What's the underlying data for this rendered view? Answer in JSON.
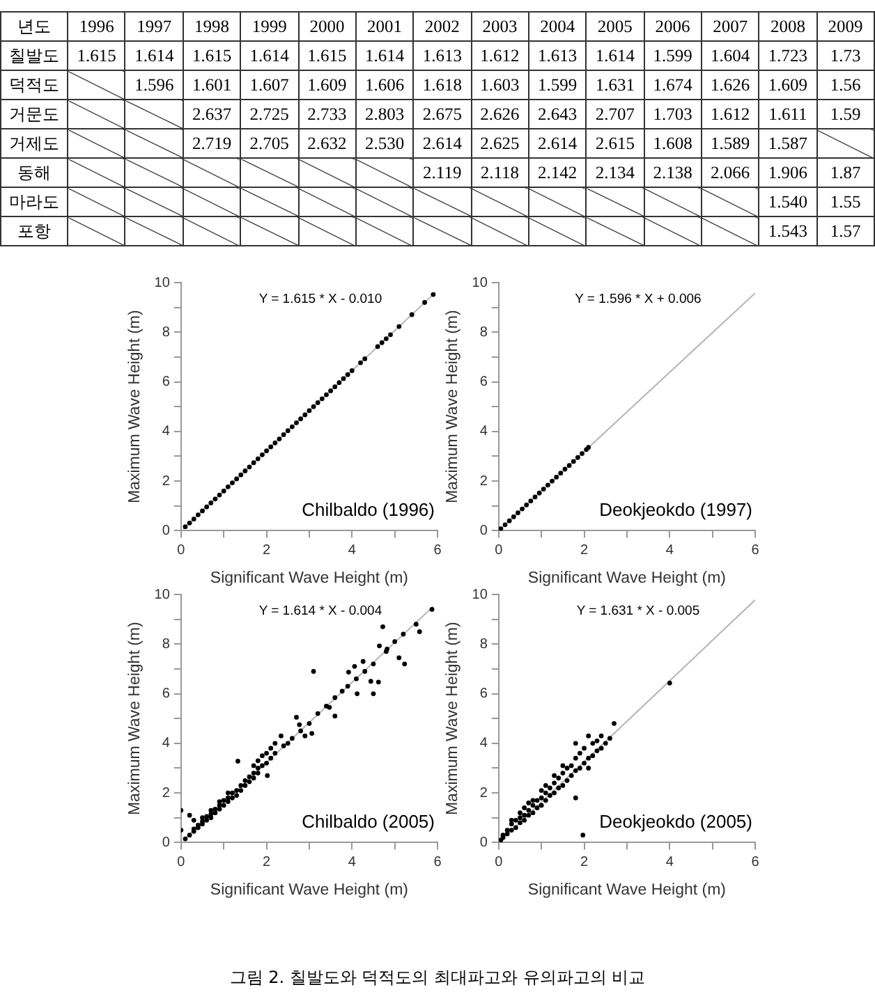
{
  "chart_data": [
    {
      "type": "heatmap",
      "xlabel": "년도",
      "categories": [
        "1996",
        "1997",
        "1998",
        "1999",
        "2000",
        "2001",
        "2002",
        "2003",
        "2004",
        "2005",
        "2006",
        "2007",
        "2008",
        "2009"
      ],
      "y_categories": [
        "칠발도",
        "덕적도",
        "거문도",
        "거제도",
        "동해",
        "마라도",
        "포항"
      ],
      "cells": [
        [
          1.615,
          1.614,
          1.615,
          1.614,
          1.615,
          1.614,
          1.613,
          1.612,
          1.613,
          1.614,
          1.599,
          1.604,
          1.723,
          1.73
        ],
        [
          null,
          1.596,
          1.601,
          1.607,
          1.609,
          1.606,
          1.618,
          1.603,
          1.599,
          1.631,
          1.674,
          1.626,
          1.609,
          1.56
        ],
        [
          null,
          null,
          2.637,
          2.725,
          2.733,
          2.803,
          2.675,
          2.626,
          2.643,
          2.707,
          1.703,
          1.612,
          1.611,
          1.59
        ],
        [
          null,
          null,
          2.719,
          2.705,
          2.632,
          2.53,
          2.614,
          2.625,
          2.614,
          2.615,
          1.608,
          1.589,
          1.587,
          null
        ],
        [
          null,
          null,
          null,
          null,
          null,
          null,
          2.119,
          2.118,
          2.142,
          2.134,
          2.138,
          2.066,
          1.906,
          1.87
        ],
        [
          null,
          null,
          null,
          null,
          null,
          null,
          null,
          null,
          null,
          null,
          null,
          null,
          1.54,
          1.55
        ],
        [
          null,
          null,
          null,
          null,
          null,
          null,
          null,
          null,
          null,
          null,
          null,
          null,
          1.543,
          1.57
        ]
      ],
      "cell_labels": [
        [
          "1.615",
          "1.614",
          "1.615",
          "1.614",
          "1.615",
          "1.614",
          "1.613",
          "1.612",
          "1.613",
          "1.614",
          "1.599",
          "1.604",
          "1.723",
          "1.73"
        ],
        [
          null,
          "1.596",
          "1.601",
          "1.607",
          "1.609",
          "1.606",
          "1.618",
          "1.603",
          "1.599",
          "1.631",
          "1.674",
          "1.626",
          "1.609",
          "1.56"
        ],
        [
          null,
          null,
          "2.637",
          "2.725",
          "2.733",
          "2.803",
          "2.675",
          "2.626",
          "2.643",
          "2.707",
          "1.703",
          "1.612",
          "1.611",
          "1.59"
        ],
        [
          null,
          null,
          "2.719",
          "2.705",
          "2.632",
          "2.530",
          "2.614",
          "2.625",
          "2.614",
          "2.615",
          "1.608",
          "1.589",
          "1.587",
          null
        ],
        [
          null,
          null,
          null,
          null,
          null,
          null,
          "2.119",
          "2.118",
          "2.142",
          "2.134",
          "2.138",
          "2.066",
          "1.906",
          "1.87"
        ],
        [
          null,
          null,
          null,
          null,
          null,
          null,
          null,
          null,
          null,
          null,
          null,
          null,
          "1.540",
          "1.55"
        ],
        [
          null,
          null,
          null,
          null,
          null,
          null,
          null,
          null,
          null,
          null,
          null,
          null,
          "1.543",
          "1.57"
        ]
      ]
    },
    {
      "type": "scatter",
      "xlabel": "Significant Wave Height (m)",
      "ylabel": "Maximum Wave Height (m)",
      "xlim": [
        0,
        6
      ],
      "ylim": [
        0,
        10
      ],
      "xticks": [
        0,
        {
          "value": 1,
          "label": null
        },
        2,
        {
          "value": 3,
          "label": null
        },
        4,
        {
          "value": 5,
          "label": null
        },
        6
      ],
      "yticks": [
        0,
        {
          "value": 1,
          "label": null
        },
        2,
        {
          "value": 3,
          "label": null
        },
        4,
        {
          "value": 5,
          "label": null
        },
        6,
        {
          "value": 7,
          "label": null
        },
        8,
        {
          "value": 9,
          "label": null
        },
        10
      ],
      "grid": false,
      "marker": "circle",
      "annotations": [
        "Y = 1.615 * X - 0.010",
        "Chilbaldo (1996)"
      ],
      "series": [
        {
          "type": "line",
          "marker": "none",
          "color": "#b4b4b4",
          "x": [
            0.05,
            5.9
          ],
          "values": [
            0.07,
            9.52
          ]
        },
        {
          "color": "#000000",
          "x": [
            0.1,
            0.2,
            0.3,
            0.4,
            0.5,
            0.6,
            0.7,
            0.8,
            0.9,
            1.0,
            1.1,
            1.2,
            1.3,
            1.4,
            1.5,
            1.6,
            1.7,
            1.8,
            1.9,
            2.0,
            2.1,
            2.2,
            2.3,
            2.4,
            2.5,
            2.6,
            2.7,
            2.8,
            2.9,
            3.0,
            3.1,
            3.2,
            3.3,
            3.4,
            3.5,
            3.6,
            3.7,
            3.8,
            3.9,
            4.0,
            4.2,
            4.3,
            4.6,
            4.7,
            4.8,
            4.9,
            5.1,
            5.4,
            5.7,
            5.9
          ],
          "values": [
            0.16,
            0.31,
            0.47,
            0.64,
            0.8,
            0.96,
            1.12,
            1.28,
            1.44,
            1.6,
            1.77,
            1.93,
            2.09,
            2.25,
            2.41,
            2.57,
            2.74,
            2.9,
            3.06,
            3.22,
            3.38,
            3.54,
            3.7,
            3.87,
            4.03,
            4.19,
            4.35,
            4.51,
            4.67,
            4.84,
            5.0,
            5.16,
            5.32,
            5.48,
            5.64,
            5.8,
            5.97,
            6.13,
            6.29,
            6.45,
            6.77,
            6.93,
            7.42,
            7.58,
            7.74,
            7.9,
            8.23,
            8.71,
            9.2,
            9.52
          ]
        }
      ]
    },
    {
      "type": "scatter",
      "xlabel": "Significant Wave Height (m)",
      "ylabel": "Maximum Wave Height (m)",
      "xlim": [
        0,
        6
      ],
      "ylim": [
        0,
        10
      ],
      "xticks": [
        0,
        {
          "value": 1,
          "label": null
        },
        2,
        {
          "value": 3,
          "label": null
        },
        4,
        {
          "value": 5,
          "label": null
        },
        6
      ],
      "yticks": [
        0,
        {
          "value": 1,
          "label": null
        },
        2,
        {
          "value": 3,
          "label": null
        },
        4,
        {
          "value": 5,
          "label": null
        },
        6,
        {
          "value": 7,
          "label": null
        },
        8,
        {
          "value": 9,
          "label": null
        },
        10
      ],
      "grid": false,
      "marker": "circle",
      "annotations": [
        "Y = 1.596 * X + 0.006",
        "Deokjeokdo (1997)"
      ],
      "series": [
        {
          "type": "line",
          "marker": "none",
          "color": "#b4b4b4",
          "x": [
            0,
            6
          ],
          "values": [
            0,
            9.58
          ]
        },
        {
          "color": "#000000",
          "x": [
            0.05,
            0.15,
            0.25,
            0.35,
            0.45,
            0.55,
            0.65,
            0.75,
            0.85,
            0.95,
            1.05,
            1.15,
            1.25,
            1.35,
            1.45,
            1.55,
            1.65,
            1.75,
            1.85,
            1.95,
            2.05,
            2.1
          ],
          "values": [
            0.08,
            0.24,
            0.4,
            0.56,
            0.72,
            0.88,
            1.04,
            1.2,
            1.36,
            1.52,
            1.68,
            1.84,
            2.0,
            2.16,
            2.32,
            2.48,
            2.63,
            2.79,
            2.95,
            3.11,
            3.27,
            3.36
          ]
        }
      ]
    },
    {
      "type": "scatter",
      "xlabel": "Significant Wave Height (m)",
      "ylabel": "Maximum Wave Height (m)",
      "xlim": [
        0,
        6
      ],
      "ylim": [
        0,
        10
      ],
      "xticks": [
        0,
        {
          "value": 1,
          "label": null
        },
        2,
        {
          "value": 3,
          "label": null
        },
        4,
        {
          "value": 5,
          "label": null
        },
        6
      ],
      "yticks": [
        0,
        {
          "value": 1,
          "label": null
        },
        2,
        {
          "value": 3,
          "label": null
        },
        4,
        {
          "value": 5,
          "label": null
        },
        6,
        {
          "value": 7,
          "label": null
        },
        8,
        {
          "value": 9,
          "label": null
        },
        10
      ],
      "grid": false,
      "marker": "circle",
      "annotations": [
        "Y = 1.614 * X - 0.004",
        "Chilbaldo (2005)"
      ],
      "series": [
        {
          "type": "line",
          "marker": "none",
          "color": "#b4b4b4",
          "x": [
            0.05,
            5.9
          ],
          "values": [
            0.08,
            9.52
          ]
        },
        {
          "color": "#000000",
          "x": [
            0,
            0,
            0.1,
            0.2,
            0.2,
            0.3,
            0.3,
            0.3,
            0.4,
            0.4,
            0.5,
            0.5,
            0.5,
            0.6,
            0.6,
            0.7,
            0.7,
            0.7,
            0.8,
            0.8,
            0.9,
            0.9,
            0.9,
            1.0,
            1.0,
            1.1,
            1.1,
            1.1,
            1.2,
            1.2,
            1.3,
            1.3,
            1.33,
            1.4,
            1.4,
            1.5,
            1.5,
            1.6,
            1.6,
            1.7,
            1.7,
            1.7,
            1.8,
            1.8,
            1.8,
            1.9,
            1.9,
            2.0,
            2.0,
            2.02,
            2.1,
            2.1,
            2.2,
            2.2,
            2.34,
            2.4,
            2.5,
            2.6,
            2.7,
            2.77,
            2.8,
            2.9,
            3.0,
            3.06,
            3.1,
            3.2,
            3.4,
            3.47,
            3.6,
            3.6,
            3.77,
            3.9,
            3.92,
            4.06,
            4.1,
            4.12,
            4.26,
            4.3,
            4.44,
            4.5,
            4.5,
            4.62,
            4.64,
            4.72,
            4.8,
            4.82,
            5.0,
            5.1,
            5.2,
            5.23,
            5.5,
            5.58,
            5.87
          ],
          "values": [
            0.5,
            1.3,
            0.15,
            1.1,
            0.3,
            0.45,
            0.55,
            0.9,
            0.6,
            0.7,
            0.75,
            0.85,
            1.0,
            0.9,
            1.05,
            1.0,
            1.15,
            1.3,
            1.2,
            1.35,
            1.35,
            1.5,
            1.65,
            1.5,
            1.7,
            1.65,
            1.8,
            2.0,
            1.8,
            2.0,
            1.9,
            2.1,
            3.28,
            2.1,
            2.3,
            2.3,
            2.5,
            2.45,
            2.65,
            2.6,
            2.8,
            3.1,
            2.8,
            3.0,
            3.3,
            3.1,
            3.5,
            3.2,
            3.6,
            2.7,
            3.4,
            3.8,
            3.6,
            4.0,
            4.3,
            3.9,
            4.0,
            4.2,
            5.05,
            4.75,
            4.5,
            4.3,
            4.8,
            4.4,
            6.9,
            5.2,
            5.5,
            5.45,
            5.1,
            5.84,
            6.1,
            6.3,
            6.87,
            7.1,
            6.6,
            6.0,
            7.3,
            6.9,
            6.5,
            6.0,
            7.2,
            6.47,
            7.93,
            8.7,
            7.7,
            7.8,
            8.1,
            7.45,
            8.4,
            7.2,
            8.8,
            8.5,
            9.4
          ]
        }
      ]
    },
    {
      "type": "scatter",
      "xlabel": "Significant Wave Height (m)",
      "ylabel": "Maximum Wave Height (m)",
      "xlim": [
        0,
        6
      ],
      "ylim": [
        0,
        10
      ],
      "xticks": [
        0,
        {
          "value": 1,
          "label": null
        },
        2,
        {
          "value": 3,
          "label": null
        },
        4,
        {
          "value": 5,
          "label": null
        },
        6
      ],
      "yticks": [
        0,
        {
          "value": 1,
          "label": null
        },
        2,
        {
          "value": 3,
          "label": null
        },
        4,
        {
          "value": 5,
          "label": null
        },
        6,
        {
          "value": 7,
          "label": null
        },
        8,
        {
          "value": 9,
          "label": null
        },
        10
      ],
      "grid": false,
      "marker": "circle",
      "annotations": [
        "Y = 1.631 * X - 0.005",
        "Deokjeokdo (2005)",
        "그림 2. 칠발도와 덕적도의 최대파고와 유의파고의 비교"
      ],
      "series": [
        {
          "type": "line",
          "marker": "none",
          "color": "#b4b4b4",
          "x": [
            0.05,
            6
          ],
          "values": [
            0.08,
            9.78
          ]
        },
        {
          "color": "#000000",
          "x": [
            0.05,
            0.1,
            0.1,
            0.2,
            0.2,
            0.3,
            0.3,
            0.3,
            0.4,
            0.4,
            0.5,
            0.5,
            0.5,
            0.6,
            0.6,
            0.6,
            0.7,
            0.7,
            0.7,
            0.8,
            0.8,
            0.8,
            0.9,
            0.9,
            1.0,
            1.0,
            1.0,
            1.1,
            1.1,
            1.1,
            1.2,
            1.2,
            1.3,
            1.3,
            1.3,
            1.4,
            1.4,
            1.5,
            1.5,
            1.5,
            1.6,
            1.6,
            1.7,
            1.7,
            1.8,
            1.8,
            1.8,
            1.8,
            1.9,
            1.9,
            1.97,
            2.0,
            2.0,
            2.1,
            2.1,
            2.1,
            2.2,
            2.2,
            2.3,
            2.3,
            2.4,
            2.4,
            2.5,
            2.6,
            2.7,
            4.0
          ],
          "values": [
            0.1,
            0.3,
            0.2,
            0.35,
            0.5,
            0.5,
            0.75,
            0.9,
            0.6,
            0.9,
            0.8,
            1.0,
            1.2,
            0.9,
            1.1,
            1.4,
            1.1,
            1.3,
            1.6,
            1.2,
            1.5,
            1.7,
            1.4,
            1.7,
            1.5,
            1.8,
            2.1,
            1.7,
            2.0,
            2.3,
            1.9,
            2.2,
            2.0,
            2.4,
            2.7,
            2.2,
            2.6,
            2.3,
            2.8,
            3.1,
            2.5,
            3.0,
            2.7,
            3.1,
            1.8,
            2.9,
            3.4,
            4.0,
            3.0,
            3.6,
            0.3,
            3.2,
            3.8,
            3.0,
            3.4,
            4.3,
            3.5,
            4.0,
            3.7,
            4.1,
            3.8,
            4.3,
            4.0,
            4.2,
            4.8,
            6.43
          ]
        }
      ]
    }
  ]
}
